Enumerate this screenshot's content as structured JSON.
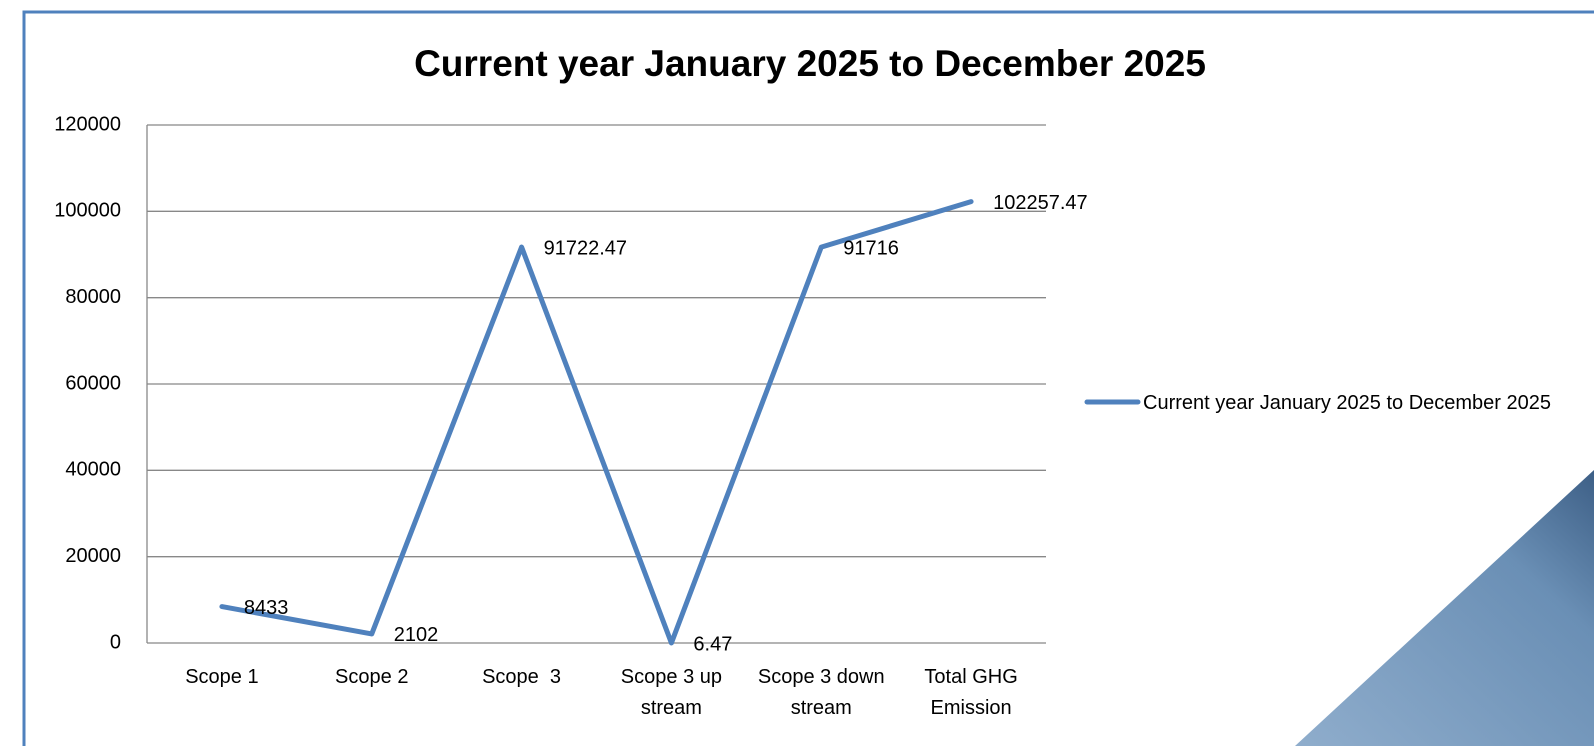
{
  "chart_data": {
    "type": "line",
    "title": "Current year January 2025 to December 2025",
    "categories": [
      "Scope 1",
      "Scope 2",
      "Scope  3",
      "Scope 3 up stream",
      "Scope 3 down stream",
      "Total GHG Emission"
    ],
    "series": [
      {
        "name": "Current year January 2025 to December 2025",
        "color": "#4f81bd",
        "values": [
          8433,
          2102,
          91722.47,
          6.47,
          91716,
          102257.47
        ]
      }
    ],
    "ylim": [
      0,
      120000
    ],
    "yticks": [
      0,
      20000,
      40000,
      60000,
      80000,
      100000,
      120000
    ],
    "grid": true,
    "legend": "right",
    "data_labels": true
  }
}
